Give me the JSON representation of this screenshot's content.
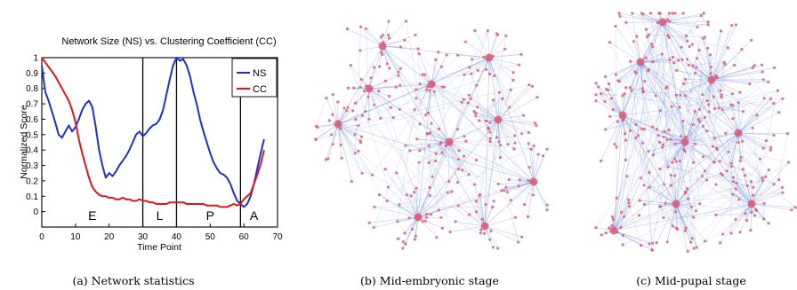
{
  "chart_data": [
    {
      "type": "line",
      "title": "Network Size (NS) vs. Clustering Coefficient (CC)",
      "xlabel": "Time Point",
      "ylabel": "Normalized Score",
      "xlim": [
        0,
        70
      ],
      "ylim": [
        -0.1,
        1.0
      ],
      "xticks": [
        "0",
        "10",
        "20",
        "30",
        "40",
        "50",
        "60",
        "70"
      ],
      "yticks": [
        "0",
        "0.1",
        "0.2",
        "0.3",
        "0.4",
        "0.5",
        "0.6",
        "0.7",
        "0.8",
        "0.9",
        "1"
      ],
      "grid": false,
      "legend_position": "top-right",
      "stage_dividers": [
        30,
        40,
        59
      ],
      "stages": [
        {
          "label": "E",
          "x": 15
        },
        {
          "label": "L",
          "x": 35
        },
        {
          "label": "P",
          "x": 50
        },
        {
          "label": "A",
          "x": 63
        }
      ],
      "series": [
        {
          "name": "NS",
          "color": "#1f2fd6",
          "x": [
            0,
            1,
            2,
            3,
            4,
            5,
            6,
            7,
            8,
            9,
            10,
            11,
            12,
            13,
            14,
            15,
            16,
            17,
            18,
            19,
            20,
            21,
            22,
            23,
            24,
            25,
            26,
            27,
            28,
            29,
            30,
            31,
            32,
            33,
            34,
            35,
            36,
            37,
            38,
            39,
            40,
            41,
            42,
            43,
            44,
            45,
            46,
            47,
            48,
            49,
            50,
            51,
            52,
            53,
            54,
            55,
            56,
            57,
            58,
            59,
            60,
            61,
            62,
            63,
            64,
            65,
            66
          ],
          "values": [
            0.95,
            0.78,
            0.72,
            0.65,
            0.58,
            0.5,
            0.48,
            0.52,
            0.56,
            0.52,
            0.55,
            0.6,
            0.66,
            0.7,
            0.72,
            0.68,
            0.55,
            0.4,
            0.3,
            0.22,
            0.25,
            0.23,
            0.26,
            0.3,
            0.33,
            0.36,
            0.4,
            0.45,
            0.5,
            0.52,
            0.49,
            0.51,
            0.54,
            0.56,
            0.57,
            0.6,
            0.66,
            0.76,
            0.86,
            0.95,
            1.0,
            0.98,
            0.99,
            0.95,
            0.88,
            0.78,
            0.7,
            0.6,
            0.52,
            0.45,
            0.38,
            0.32,
            0.28,
            0.25,
            0.24,
            0.22,
            0.18,
            0.12,
            0.07,
            0.05,
            0.03,
            0.05,
            0.1,
            0.18,
            0.28,
            0.38,
            0.47
          ]
        },
        {
          "name": "CC",
          "color": "#e01818",
          "x": [
            0,
            1,
            2,
            3,
            4,
            5,
            6,
            7,
            8,
            9,
            10,
            11,
            12,
            13,
            14,
            15,
            16,
            17,
            18,
            19,
            20,
            21,
            22,
            23,
            24,
            25,
            26,
            27,
            28,
            29,
            30,
            31,
            32,
            33,
            34,
            35,
            36,
            37,
            38,
            39,
            40,
            41,
            42,
            43,
            44,
            45,
            46,
            47,
            48,
            49,
            50,
            51,
            52,
            53,
            54,
            55,
            56,
            57,
            58,
            59,
            60,
            61,
            62,
            63,
            64,
            65,
            66
          ],
          "values": [
            1.0,
            0.97,
            0.94,
            0.91,
            0.88,
            0.84,
            0.8,
            0.76,
            0.72,
            0.66,
            0.58,
            0.47,
            0.38,
            0.3,
            0.22,
            0.16,
            0.13,
            0.11,
            0.1,
            0.1,
            0.09,
            0.09,
            0.08,
            0.08,
            0.09,
            0.08,
            0.08,
            0.07,
            0.07,
            0.08,
            0.07,
            0.07,
            0.06,
            0.06,
            0.05,
            0.05,
            0.05,
            0.05,
            0.06,
            0.06,
            0.06,
            0.06,
            0.06,
            0.05,
            0.05,
            0.05,
            0.05,
            0.05,
            0.05,
            0.04,
            0.04,
            0.04,
            0.04,
            0.03,
            0.03,
            0.03,
            0.04,
            0.05,
            0.04,
            0.05,
            0.08,
            0.1,
            0.12,
            0.18,
            0.24,
            0.31,
            0.4
          ]
        }
      ]
    }
  ],
  "captions": {
    "a": "(a)  Network statistics",
    "b": "(b)  Mid-embryonic stage",
    "c": "(c)  Mid-pupal stage"
  },
  "networks": {
    "node_color": "#d9607a",
    "edge_color": "#6f86e8"
  }
}
